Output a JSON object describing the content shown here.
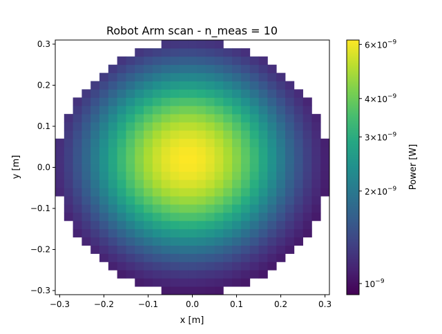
{
  "chart_data": {
    "type": "heatmap",
    "title": "Robot Arm scan - n_meas = 10",
    "xlabel": "x [m]",
    "ylabel": "y [m]",
    "xlim": [
      -0.31,
      0.31
    ],
    "ylim": [
      -0.31,
      0.31
    ],
    "x_ticks": [
      -0.3,
      -0.2,
      -0.1,
      0.0,
      0.1,
      0.2,
      0.3
    ],
    "y_ticks": [
      -0.3,
      -0.2,
      -0.1,
      0.0,
      0.1,
      0.2,
      0.3
    ],
    "x_tick_labels": [
      "−0.3",
      "−0.2",
      "−0.1",
      "0.0",
      "0.1",
      "0.2",
      "0.3"
    ],
    "y_tick_labels": [
      "−0.3",
      "−0.2",
      "−0.1",
      "0.0",
      "0.1",
      "0.2",
      "0.3"
    ],
    "grid": false,
    "colormap": "viridis",
    "grid_n": 31,
    "scan_radius": 0.31,
    "peak_center": [
      -0.01,
      0.02
    ],
    "colorbar": {
      "label": "Power [W]",
      "scale": "log",
      "min": 9.2e-10,
      "max": 6.2e-09,
      "ticks": [
        {
          "value": 6e-09,
          "mantissa": "6",
          "base": "×10",
          "exp": "−9"
        },
        {
          "value": 4e-09,
          "mantissa": "4",
          "base": "×10",
          "exp": "−9"
        },
        {
          "value": 3e-09,
          "mantissa": "3",
          "base": "×10",
          "exp": "−9"
        },
        {
          "value": 2e-09,
          "mantissa": "2",
          "base": "×10",
          "exp": "−9"
        },
        {
          "value": 1e-09,
          "mantissa": "",
          "base": "10",
          "exp": "−9"
        }
      ]
    }
  }
}
